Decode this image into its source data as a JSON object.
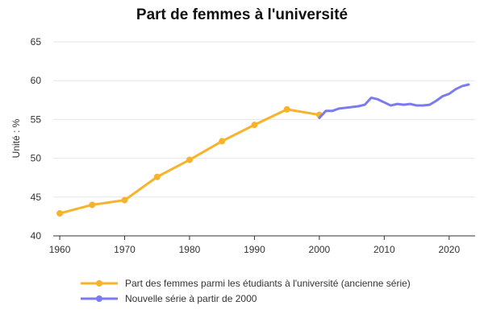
{
  "chart_data": {
    "type": "line",
    "title": "Part de femmes à l'université",
    "xlabel": "",
    "ylabel": "Unité : %",
    "xlim": [
      1959,
      2024
    ],
    "ylim": [
      40,
      65
    ],
    "x_ticks": [
      1960,
      1970,
      1980,
      1990,
      2000,
      2010,
      2020
    ],
    "y_ticks": [
      40,
      45,
      50,
      55,
      60,
      65
    ],
    "grid": true,
    "legend_position": "bottom",
    "series": [
      {
        "name": "Part des femmes parmi les étudiants à l'université (ancienne série)",
        "color": "#f7b32b",
        "markers": true,
        "x": [
          1960,
          1965,
          1970,
          1975,
          1980,
          1985,
          1990,
          1995,
          2000
        ],
        "y": [
          42.9,
          44.0,
          44.6,
          47.6,
          49.8,
          52.2,
          54.3,
          56.3,
          55.6
        ]
      },
      {
        "name": "Nouvelle série à partir de 2000",
        "color": "#7b7bf0",
        "markers": false,
        "x": [
          2000,
          2001,
          2002,
          2003,
          2004,
          2005,
          2006,
          2007,
          2008,
          2009,
          2010,
          2011,
          2012,
          2013,
          2014,
          2015,
          2016,
          2017,
          2018,
          2019,
          2020,
          2021,
          2022,
          2023
        ],
        "y": [
          55.2,
          56.1,
          56.1,
          56.4,
          56.5,
          56.6,
          56.7,
          56.9,
          57.8,
          57.6,
          57.2,
          56.8,
          57.0,
          56.9,
          57.0,
          56.8,
          56.8,
          56.9,
          57.4,
          58.0,
          58.3,
          58.9,
          59.3,
          59.5
        ]
      }
    ]
  }
}
